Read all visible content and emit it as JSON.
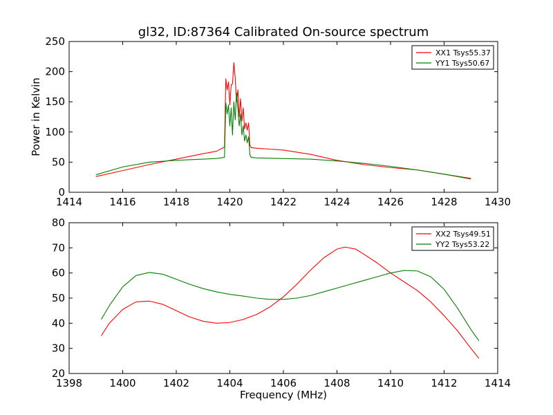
{
  "figure": {
    "title": "gl32, ID:87364 Calibrated On-source spectrum",
    "colors": {
      "red": "#ff0000",
      "green": "#007f00"
    }
  },
  "chart_data": [
    {
      "type": "line",
      "ylabel": "Power in Kelvin",
      "xlabel": "",
      "xlim": [
        1414,
        1430
      ],
      "ylim": [
        0,
        250
      ],
      "xticks": [
        "1414",
        "1416",
        "1418",
        "1420",
        "1422",
        "1424",
        "1426",
        "1428",
        "1430"
      ],
      "yticks": [
        "0",
        "50",
        "100",
        "150",
        "200",
        "250"
      ],
      "xtick_values": [
        1414,
        1416,
        1418,
        1420,
        1422,
        1424,
        1426,
        1428,
        1430
      ],
      "ytick_values": [
        0,
        50,
        100,
        150,
        200,
        250
      ],
      "legend_position": "top-right",
      "series": [
        {
          "name": "XX1 Tsys55.37",
          "color": "#ff0000",
          "x": [
            1415,
            1416,
            1417,
            1418,
            1419,
            1419.5,
            1419.8,
            1419.85,
            1419.9,
            1419.95,
            1420.0,
            1420.05,
            1420.1,
            1420.15,
            1420.2,
            1420.25,
            1420.3,
            1420.35,
            1420.4,
            1420.45,
            1420.5,
            1420.55,
            1420.6,
            1420.65,
            1420.7,
            1420.75,
            1420.8,
            1421,
            1422,
            1423,
            1424,
            1425,
            1426,
            1427,
            1428,
            1429
          ],
          "y": [
            26,
            36,
            46,
            55,
            64,
            68,
            75,
            188,
            170,
            183,
            145,
            178,
            180,
            215,
            190,
            150,
            170,
            125,
            155,
            118,
            140,
            105,
            115,
            103,
            115,
            78,
            74,
            73,
            70,
            63,
            53,
            46,
            41,
            37,
            30,
            22
          ]
        },
        {
          "name": "YY1 Tsys50.67",
          "color": "#007f00",
          "x": [
            1415,
            1416,
            1417,
            1418,
            1419,
            1419.5,
            1419.8,
            1419.85,
            1419.9,
            1419.95,
            1420.0,
            1420.05,
            1420.1,
            1420.15,
            1420.2,
            1420.25,
            1420.3,
            1420.35,
            1420.4,
            1420.45,
            1420.5,
            1420.55,
            1420.6,
            1420.65,
            1420.7,
            1420.75,
            1420.8,
            1421,
            1422,
            1423,
            1424,
            1425,
            1426,
            1427,
            1428,
            1429
          ],
          "y": [
            29,
            42,
            50,
            53,
            55,
            56,
            58,
            148,
            130,
            145,
            110,
            140,
            95,
            150,
            120,
            165,
            140,
            110,
            130,
            95,
            110,
            85,
            95,
            82,
            92,
            62,
            58,
            57,
            56,
            55,
            52,
            48,
            43,
            37,
            30,
            23
          ]
        }
      ]
    },
    {
      "type": "line",
      "ylabel": "",
      "xlabel": "Frequency (MHz)",
      "xlim": [
        1398,
        1414
      ],
      "ylim": [
        20,
        80
      ],
      "xticks": [
        "1398",
        "1400",
        "1402",
        "1404",
        "1406",
        "1408",
        "1410",
        "1412",
        "1414"
      ],
      "yticks": [
        "20",
        "30",
        "40",
        "50",
        "60",
        "70",
        "80"
      ],
      "xtick_values": [
        1398,
        1400,
        1402,
        1404,
        1406,
        1408,
        1410,
        1412,
        1414
      ],
      "ytick_values": [
        20,
        30,
        40,
        50,
        60,
        70,
        80
      ],
      "legend_position": "top-right",
      "series": [
        {
          "name": "XX2 Tsys49.51",
          "color": "#ff0000",
          "x": [
            1399.2,
            1399.5,
            1400,
            1400.5,
            1401,
            1401.5,
            1402,
            1402.5,
            1403,
            1403.5,
            1404,
            1404.5,
            1405,
            1405.5,
            1406,
            1406.5,
            1407,
            1407.5,
            1408,
            1408.3,
            1408.7,
            1409,
            1409.5,
            1410,
            1410.5,
            1411,
            1411.5,
            1412,
            1412.5,
            1413,
            1413.3
          ],
          "y": [
            35,
            40,
            45.5,
            48.5,
            48.8,
            47.5,
            45,
            42.5,
            40.8,
            40,
            40.3,
            41.5,
            43.5,
            46.5,
            50.5,
            55.5,
            61,
            66,
            69.5,
            70.3,
            69.5,
            67.5,
            64,
            60,
            56.5,
            53,
            48.5,
            43,
            37,
            30,
            26
          ]
        },
        {
          "name": "YY2 Tsys53.22",
          "color": "#007f00",
          "x": [
            1399.2,
            1399.5,
            1400,
            1400.5,
            1401,
            1401.5,
            1402,
            1402.5,
            1403,
            1403.5,
            1404,
            1404.5,
            1405,
            1405.5,
            1406,
            1406.5,
            1407,
            1407.5,
            1408,
            1408.5,
            1409,
            1409.5,
            1410,
            1410.5,
            1411,
            1411.5,
            1412,
            1412.5,
            1413,
            1413.3
          ],
          "y": [
            41.5,
            47,
            54.5,
            59,
            60.2,
            59.5,
            57.5,
            55.5,
            53.8,
            52.5,
            51.5,
            50.8,
            50,
            49.5,
            49.5,
            50,
            51,
            52.5,
            54,
            55.5,
            57,
            58.5,
            60,
            61,
            60.8,
            58.5,
            53.5,
            46,
            37.5,
            33
          ]
        }
      ]
    }
  ]
}
